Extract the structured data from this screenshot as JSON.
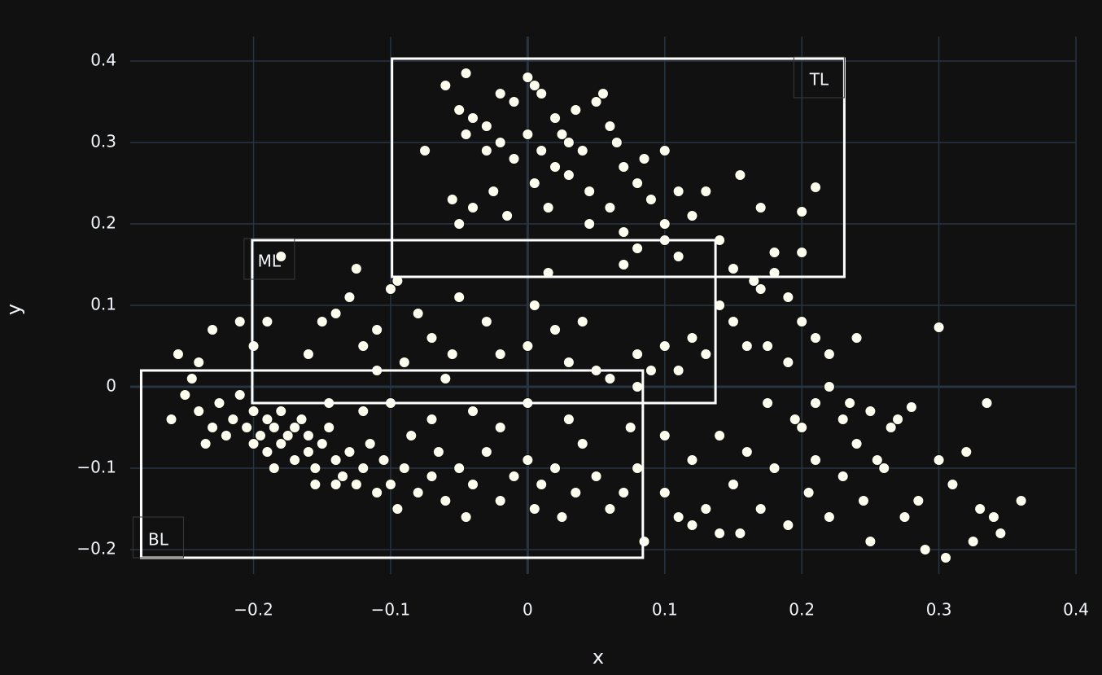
{
  "chart_data": {
    "type": "scatter",
    "x_label": "x",
    "y_label": "y",
    "color": "#fffff0",
    "xlim": [
      -0.29,
      0.4
    ],
    "ylim": [
      -0.23,
      0.43
    ],
    "xticks": [
      {
        "value": -0.2,
        "label": "−0.2"
      },
      {
        "value": -0.1,
        "label": "−0.1"
      },
      0,
      0.1,
      0.2,
      0.3,
      0.4
    ],
    "yticks": [
      {
        "value": -0.2,
        "label": "−0.2"
      },
      {
        "value": -0.1,
        "label": "−0.1"
      },
      0,
      0.1,
      0.2,
      0.3,
      0.4
    ],
    "grid": true,
    "shapes": [
      {
        "label": "TL",
        "x0": -0.099,
        "x1": 0.231,
        "y0": 0.135,
        "y1": 0.403,
        "corner": "top right"
      },
      {
        "label": "ML",
        "x0": -0.201,
        "x1": 0.137,
        "y0": -0.02,
        "y1": 0.18,
        "corner": "top left"
      },
      {
        "label": "BL",
        "x0": -0.282,
        "x1": 0.084,
        "y0": -0.21,
        "y1": 0.02,
        "corner": "bottom left"
      }
    ],
    "x": [
      -0.06,
      -0.04,
      -0.03,
      -0.02,
      -0.01,
      0,
      0.005,
      0.01,
      0.02,
      0.025,
      0.03,
      0.04,
      0.05,
      0.055,
      0.06,
      -0.05,
      -0.045,
      -0.03,
      -0.02,
      -0.01,
      0,
      0.01,
      0.02,
      -0.075,
      -0.055,
      -0.05,
      -0.04,
      -0.025,
      -0.015,
      0.005,
      0.015,
      0.03,
      0.045,
      0.06,
      0.07,
      0.08,
      0.09,
      0.1,
      0.11,
      0.12,
      0.13,
      0.14,
      0.155,
      0.17,
      0.2,
      0.21,
      0.2,
      0.18,
      0.15,
      0.07,
      0.1,
      0.08,
      0.11,
      -0.045,
      0.035,
      0.065,
      0.085,
      0.045,
      0.07,
      0.1,
      -0.18,
      -0.125,
      -0.13,
      -0.14,
      -0.11,
      -0.1,
      -0.095,
      -0.08,
      -0.07,
      -0.05,
      -0.03,
      -0.02,
      0,
      0.005,
      0.015,
      0.02,
      0.04,
      -0.15,
      -0.16,
      -0.19,
      -0.2,
      -0.21,
      -0.23,
      -0.255,
      -0.24,
      -0.12,
      -0.11,
      -0.09,
      -0.06,
      -0.055,
      0.03,
      0.05,
      0.06,
      0.08,
      0.1,
      0.12,
      0.13,
      0.16,
      0.14,
      0.15,
      0.17,
      0.175,
      0.19,
      0.2,
      0.21,
      0.22,
      0.24,
      0.3,
      0.19,
      0.18,
      0.165,
      0.08,
      0.09,
      0.11,
      -0.26,
      -0.25,
      -0.245,
      -0.24,
      -0.235,
      -0.23,
      -0.225,
      -0.22,
      -0.215,
      -0.21,
      -0.205,
      -0.2,
      -0.2,
      -0.195,
      -0.19,
      -0.19,
      -0.185,
      -0.18,
      -0.18,
      -0.175,
      -0.17,
      -0.17,
      -0.165,
      -0.16,
      -0.16,
      -0.155,
      -0.15,
      -0.145,
      -0.14,
      -0.135,
      -0.13,
      -0.125,
      -0.12,
      -0.115,
      -0.11,
      -0.105,
      -0.1,
      -0.095,
      -0.09,
      -0.085,
      -0.08,
      -0.07,
      -0.065,
      -0.06,
      -0.05,
      -0.045,
      -0.04,
      -0.03,
      -0.02,
      -0.01,
      0,
      0.005,
      0.01,
      0.02,
      0.025,
      0.035,
      0.04,
      0.05,
      0.06,
      0.07,
      0.08,
      0.085,
      0.075,
      -0.145,
      -0.12,
      -0.1,
      -0.07,
      -0.04,
      -0.02,
      0,
      0.03,
      -0.185,
      -0.155,
      -0.14,
      0.1,
      0.11,
      0.12,
      0.13,
      0.14,
      0.15,
      0.155,
      0.16,
      0.17,
      0.18,
      0.19,
      0.2,
      0.205,
      0.21,
      0.22,
      0.23,
      0.24,
      0.245,
      0.25,
      0.26,
      0.265,
      0.27,
      0.275,
      0.28,
      0.285,
      0.29,
      0.3,
      0.305,
      0.31,
      0.32,
      0.325,
      0.33,
      0.335,
      0.34,
      0.345,
      0.36,
      0.25,
      0.23,
      0.22,
      0.21,
      0.235,
      0.255,
      0.195,
      0.175,
      0.14,
      0.12,
      0.1
    ],
    "values": [
      0.37,
      0.33,
      0.32,
      0.36,
      0.35,
      0.38,
      0.37,
      0.36,
      0.33,
      0.31,
      0.3,
      0.29,
      0.35,
      0.36,
      0.32,
      0.34,
      0.31,
      0.29,
      0.3,
      0.28,
      0.31,
      0.29,
      0.27,
      0.29,
      0.23,
      0.2,
      0.22,
      0.24,
      0.21,
      0.25,
      0.22,
      0.26,
      0.24,
      0.22,
      0.27,
      0.25,
      0.23,
      0.29,
      0.24,
      0.21,
      0.24,
      0.18,
      0.26,
      0.22,
      0.215,
      0.245,
      0.165,
      0.165,
      0.145,
      0.19,
      0.2,
      0.17,
      0.16,
      0.385,
      0.34,
      0.3,
      0.28,
      0.2,
      0.15,
      0.18,
      0.16,
      0.145,
      0.11,
      0.09,
      0.07,
      0.12,
      0.13,
      0.09,
      0.06,
      0.11,
      0.08,
      0.04,
      0.05,
      0.1,
      0.14,
      0.07,
      0.08,
      0.08,
      0.04,
      0.08,
      0.05,
      0.08,
      0.07,
      0.04,
      0.03,
      0.05,
      0.02,
      0.03,
      0.01,
      0.04,
      0.03,
      0.02,
      0.01,
      0,
      0.05,
      0.06,
      0.04,
      0.05,
      0.1,
      0.08,
      0.12,
      0.05,
      0.03,
      0.08,
      0.06,
      0.04,
      0.06,
      0.073,
      0.11,
      0.14,
      0.13,
      0.04,
      0.02,
      0.02,
      -0.04,
      -0.01,
      0.01,
      -0.03,
      -0.07,
      -0.05,
      -0.02,
      -0.06,
      -0.04,
      -0.01,
      -0.05,
      -0.07,
      -0.03,
      -0.06,
      -0.04,
      -0.08,
      -0.05,
      -0.07,
      -0.03,
      -0.06,
      -0.09,
      -0.05,
      -0.04,
      -0.08,
      -0.06,
      -0.1,
      -0.07,
      -0.05,
      -0.09,
      -0.11,
      -0.08,
      -0.12,
      -0.1,
      -0.07,
      -0.13,
      -0.09,
      -0.12,
      -0.15,
      -0.1,
      -0.06,
      -0.13,
      -0.11,
      -0.08,
      -0.14,
      -0.1,
      -0.16,
      -0.12,
      -0.08,
      -0.14,
      -0.11,
      -0.09,
      -0.15,
      -0.12,
      -0.1,
      -0.16,
      -0.13,
      -0.07,
      -0.11,
      -0.15,
      -0.13,
      -0.1,
      -0.19,
      -0.05,
      -0.02,
      -0.03,
      -0.02,
      -0.04,
      -0.03,
      -0.05,
      -0.02,
      -0.04,
      -0.1,
      -0.12,
      -0.12,
      -0.13,
      -0.16,
      -0.09,
      -0.15,
      -0.06,
      -0.12,
      -0.18,
      -0.08,
      -0.15,
      -0.1,
      -0.17,
      -0.05,
      -0.13,
      -0.09,
      -0.16,
      -0.11,
      -0.07,
      -0.14,
      -0.19,
      -0.1,
      -0.05,
      -0.04,
      -0.16,
      -0.025,
      -0.14,
      -0.2,
      -0.09,
      -0.21,
      -0.12,
      -0.08,
      -0.19,
      -0.15,
      -0.02,
      -0.16,
      -0.18,
      -0.14,
      -0.03,
      -0.04,
      0,
      -0.02,
      -0.02,
      -0.09,
      -0.04,
      -0.02,
      -0.18,
      -0.17,
      -0.06
    ]
  }
}
